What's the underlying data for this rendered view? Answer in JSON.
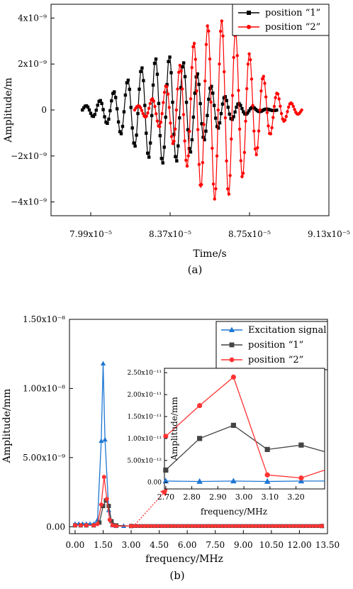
{
  "chart_data": [
    {
      "panel_label": "(a)",
      "type": "line",
      "xlabel": "Time/s",
      "ylabel": "Amplitude/m",
      "xlim": [
        7.8e-05,
        9.13e-05
      ],
      "ylim": [
        -4.6e-09,
        4.6e-09
      ],
      "x_ticks": [
        7.99e-05,
        8.37e-05,
        8.75e-05,
        9.13e-05
      ],
      "x_tick_labels": [
        "7.99x10⁻⁵",
        "8.37x10⁻⁵",
        "8.75x10⁻⁵",
        "9.13x10⁻⁵"
      ],
      "y_ticks": [
        -4e-09,
        -2e-09,
        0,
        2e-09,
        4e-09
      ],
      "y_tick_labels": [
        "−4x10⁻⁹",
        "−2x10⁻⁹",
        "0",
        "2x10⁻⁹",
        "4x10⁻⁹"
      ],
      "legend_position": "top-right",
      "series": [
        {
          "name": "position “1”",
          "color": "#000000",
          "marker": "square",
          "t_start": 7.95e-05,
          "t_end": 8.88e-05,
          "center": 8.35e-05,
          "sigma": 1.7e-06,
          "freq": 1500000.0,
          "peak": 2.35e-09
        },
        {
          "name": "position “2”",
          "color": "#ff0000",
          "marker": "circle",
          "t_start": 8.2e-05,
          "t_end": 9e-05,
          "center": 8.6e-05,
          "sigma": 1.55e-06,
          "freq": 1500000.0,
          "peak": 3.9e-09
        }
      ]
    },
    {
      "panel_label": "(b)",
      "type": "line",
      "xlabel": "frequency/MHz",
      "ylabel": "Amplitude/mm",
      "xlim": [
        -0.3,
        13.5
      ],
      "ylim": [
        -5e-10,
        1.5e-08
      ],
      "x_ticks": [
        0,
        1.5,
        3,
        4.5,
        6,
        7.5,
        9,
        10.5,
        12,
        13.5
      ],
      "x_tick_labels": [
        "0.00",
        "1.50",
        "3.00",
        "4.50",
        "6.00",
        "7.50",
        "9.00",
        "10.50",
        "12.00",
        "13.50"
      ],
      "y_ticks": [
        0,
        5e-09,
        1e-08,
        1.5e-08
      ],
      "y_tick_labels": [
        "0.00",
        "5.00x10⁻⁹",
        "1.00x10⁻⁸",
        "1.50x10⁻⁸"
      ],
      "legend_position": "top-right",
      "series": [
        {
          "name": "Excitation signal",
          "color": "#1f77d4",
          "marker": "triangle",
          "x": [
            0,
            0.2,
            0.4,
            0.6,
            0.8,
            1.0,
            1.2,
            1.4,
            1.5,
            1.6,
            1.8,
            2.0,
            2.2,
            2.6,
            3.0,
            13.2
          ],
          "y": [
            2e-10,
            2e-10,
            2e-10,
            2e-10,
            2e-10,
            2e-10,
            5e-10,
            6.2e-09,
            1.18e-08,
            6.3e-09,
            1.2e-09,
            1e-10,
            5e-11,
            5e-11,
            5e-11,
            5e-11
          ]
        },
        {
          "name": "position “1”",
          "color": "#444444",
          "marker": "square",
          "x": [
            0,
            0.3,
            0.6,
            1.0,
            1.3,
            1.5,
            1.65,
            1.8,
            1.95,
            2.2,
            3.0,
            13.2
          ],
          "y": [
            1e-10,
            1e-10,
            1e-10,
            1e-10,
            3e-10,
            1.5e-09,
            1.9e-09,
            1.5e-09,
            4e-10,
            1e-10,
            5e-11,
            5e-11
          ]
        },
        {
          "name": "position “2”",
          "color": "#ff3333",
          "marker": "circle",
          "x": [
            0,
            0.3,
            0.6,
            1.0,
            1.2,
            1.4,
            1.55,
            1.7,
            1.85,
            2.0,
            2.2,
            3.0,
            13.2
          ],
          "y": [
            1e-10,
            1e-10,
            1e-10,
            1e-10,
            2e-10,
            1.6e-09,
            3.6e-09,
            2e-09,
            5e-10,
            1e-10,
            5e-11,
            5e-11,
            5e-11
          ]
        }
      ],
      "inset": {
        "xlabel": "frequency/MHz",
        "ylabel": "Amplitude/mm",
        "xlim": [
          2.695,
          3.31
        ],
        "ylim": [
          -1.5e-12,
          2.6e-11
        ],
        "x_ticks": [
          2.7,
          2.8,
          2.9,
          3.0,
          3.1,
          3.2
        ],
        "x_tick_labels": [
          "2.70",
          "2.80",
          "2.90",
          "3.00",
          "3.10",
          "3.20"
        ],
        "y_ticks": [
          0,
          5e-12,
          1e-11,
          1.5e-11,
          2e-11,
          2.5e-11
        ],
        "y_tick_labels": [
          "0.00",
          "5.00x10⁻¹²",
          "1.00x10⁻¹¹",
          "1.50x10⁻¹¹",
          "2.00x10⁻¹¹",
          "2.50x10⁻¹¹"
        ],
        "series": [
          {
            "name": "Excitation signal",
            "x": [
              2.7,
              2.83,
              2.96,
              3.09,
              3.22,
              3.31
            ],
            "y": [
              3e-13,
              2e-13,
              3e-13,
              2e-13,
              3e-13,
              3e-13
            ]
          },
          {
            "name": "position “1”",
            "x": [
              2.7,
              2.83,
              2.96,
              3.09,
              3.22,
              3.31
            ],
            "y": [
              2.8e-12,
              1e-11,
              1.3e-11,
              7.5e-12,
              8.5e-12,
              7e-12
            ]
          },
          {
            "name": "position “2”",
            "x": [
              2.7,
              2.83,
              2.96,
              3.09,
              3.22,
              3.31
            ],
            "y": [
              1.05e-11,
              1.75e-11,
              2.4e-11,
              1.7e-12,
              1e-12,
              2.8e-12
            ]
          }
        ]
      }
    }
  ]
}
